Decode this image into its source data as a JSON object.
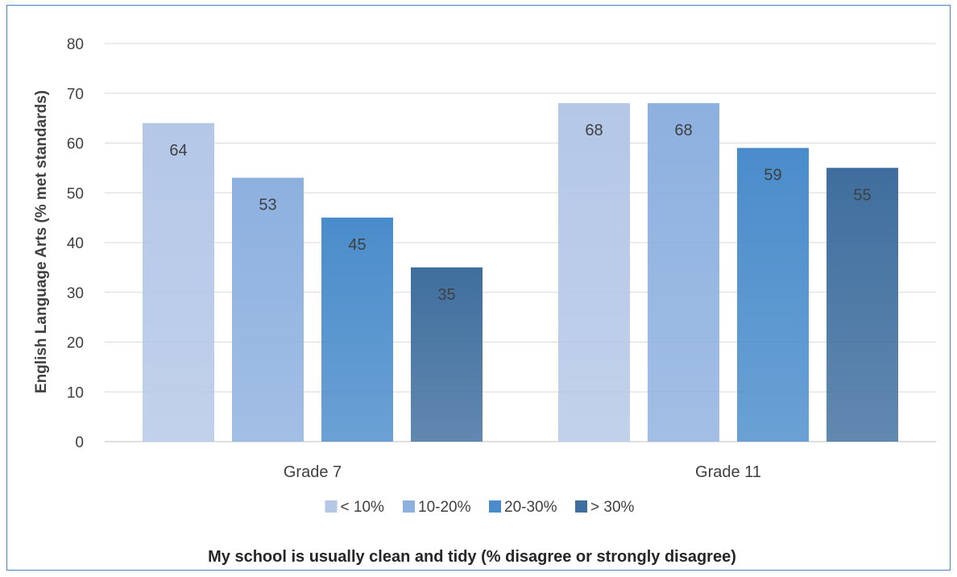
{
  "chart_data": {
    "type": "bar",
    "categories": [
      "Grade 7",
      "Grade 11"
    ],
    "series": [
      {
        "name": "< 10%",
        "values": [
          64,
          68
        ],
        "color": "#b4c7e7"
      },
      {
        "name": "10-20%",
        "values": [
          53,
          68
        ],
        "color": "#8db0df"
      },
      {
        "name": "20-30%",
        "values": [
          45,
          59
        ],
        "color": "#4a8ccb"
      },
      {
        "name": "> 30%",
        "values": [
          35,
          55
        ],
        "color": "#3f6e9e"
      }
    ],
    "ylabel": "English Language Arts (% met standards)",
    "xlabel": "My school is usually clean and tidy (% disagree or strongly disagree)",
    "ylim": [
      0,
      80
    ],
    "yticks": [
      0,
      10,
      20,
      30,
      40,
      50,
      60,
      70,
      80
    ],
    "grid": true,
    "legend": "bottom",
    "data_labels": true
  }
}
